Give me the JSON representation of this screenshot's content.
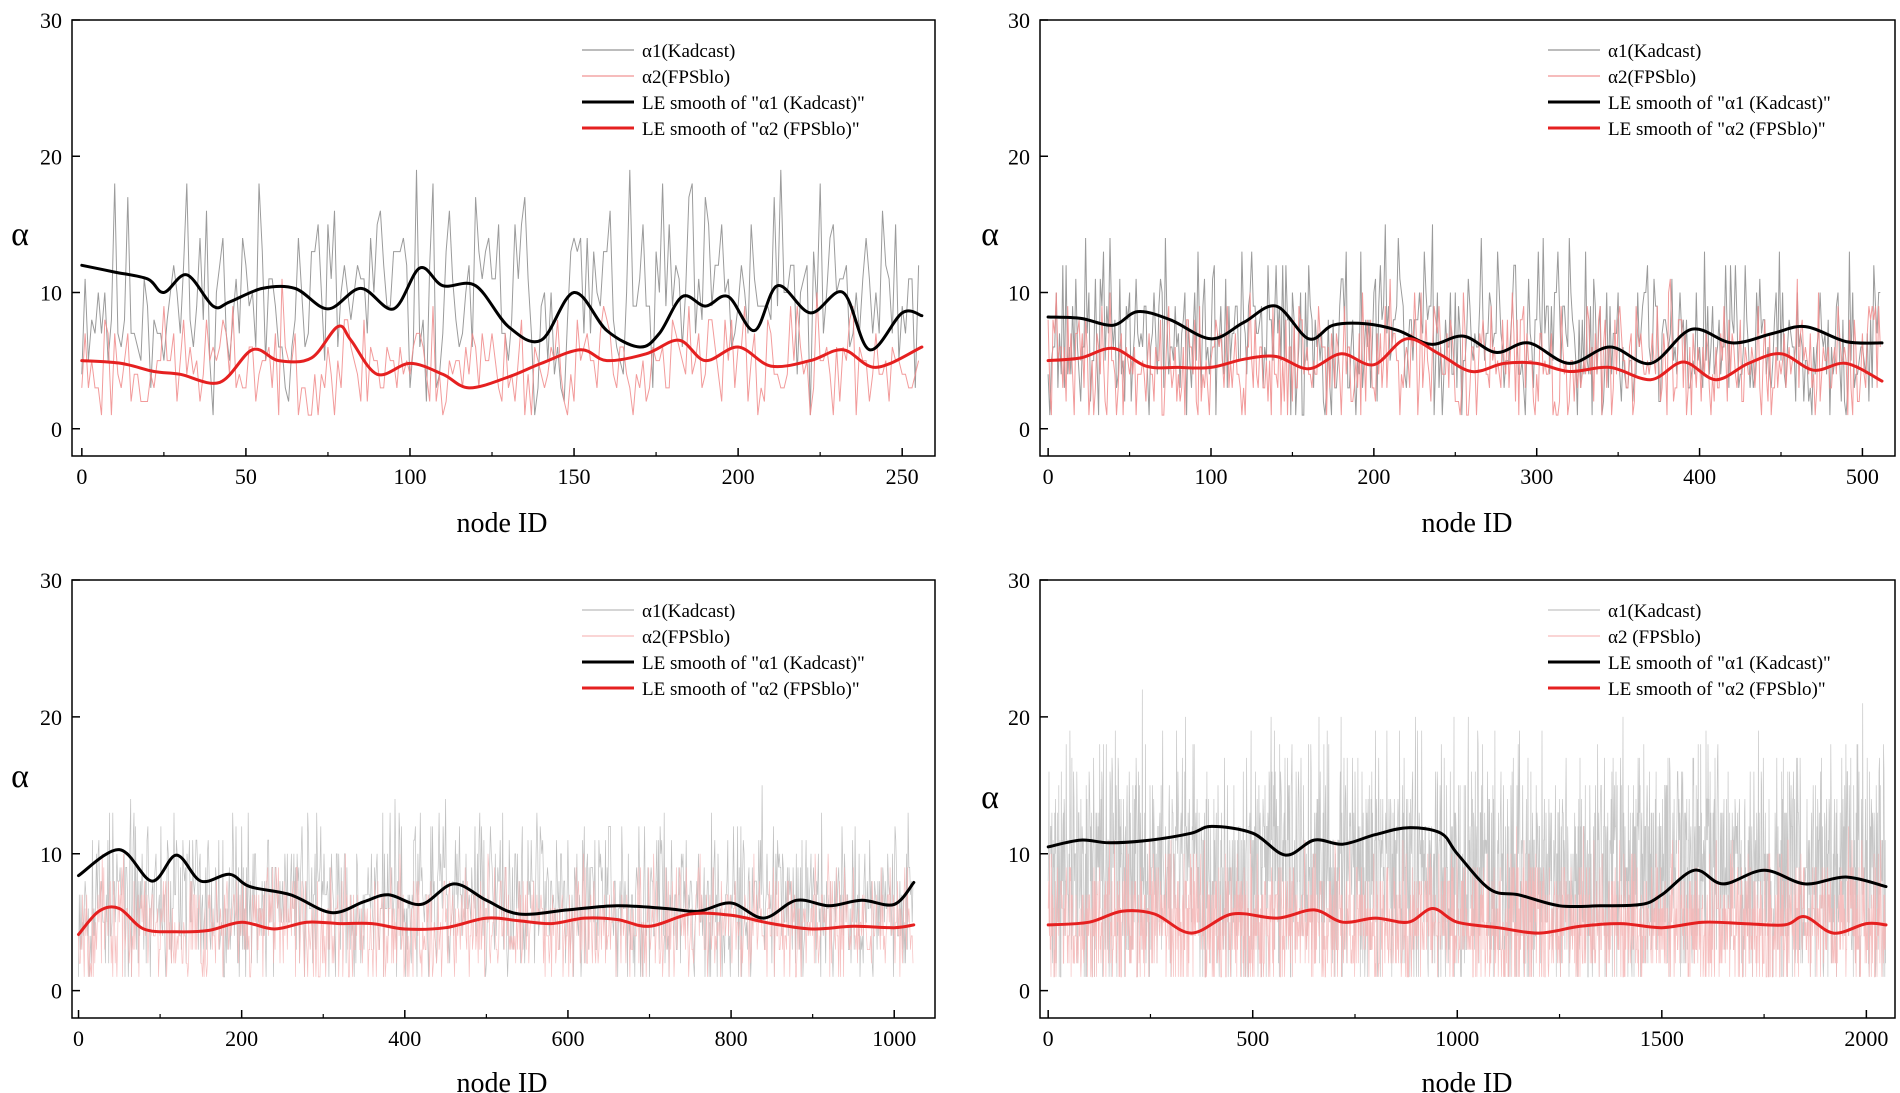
{
  "chart_data": [
    {
      "type": "line",
      "xlabel": "node ID",
      "ylabel": "α",
      "xlim": [
        -3,
        260
      ],
      "ylim": [
        -2,
        30
      ],
      "xticks": [
        0,
        50,
        100,
        150,
        200,
        250
      ],
      "yticks": [
        0,
        10,
        20,
        30
      ],
      "raw_series": [
        {
          "name": "α1(Kadcast)",
          "color": "#8a8a8a",
          "seed": 11,
          "n": 256,
          "mean": 9.5,
          "amp": 4.2,
          "min": 1,
          "max": 19
        },
        {
          "name": "α2(FPSblo)",
          "color": "#f08a8a",
          "seed": 23,
          "n": 256,
          "mean": 4.8,
          "amp": 2.2,
          "min": 1,
          "max": 13
        }
      ],
      "smooth_series": [
        {
          "name": "LE smooth of \"α1 (Kadcast)\"",
          "color": "#000000",
          "x": [
            0,
            10,
            20,
            25,
            32,
            40,
            45,
            55,
            65,
            75,
            85,
            95,
            103,
            110,
            120,
            130,
            140,
            150,
            160,
            170,
            176,
            183,
            190,
            197,
            205,
            212,
            222,
            232,
            240,
            250,
            256
          ],
          "y": [
            12,
            11.5,
            11,
            10,
            11.3,
            9,
            9.3,
            10.3,
            10.3,
            8.8,
            10.3,
            8.8,
            11.8,
            10.5,
            10.5,
            7.5,
            6.5,
            10,
            7.2,
            6,
            7,
            9.7,
            9,
            9.7,
            7.2,
            10.5,
            8.5,
            10,
            5.8,
            8.5,
            8.3
          ]
        },
        {
          "name": "LE smooth of \"α2 (FPSblo)\"",
          "color": "#e52020",
          "x": [
            0,
            12,
            22,
            30,
            42,
            52,
            60,
            70,
            78,
            82,
            90,
            100,
            110,
            118,
            130,
            140,
            152,
            160,
            172,
            182,
            190,
            200,
            210,
            222,
            232,
            242,
            256
          ],
          "y": [
            5,
            4.8,
            4.2,
            4,
            3.4,
            5.8,
            5,
            5.2,
            7.5,
            6.5,
            4,
            4.8,
            4,
            3,
            3.8,
            4.8,
            5.8,
            5,
            5.5,
            6.5,
            5,
            6,
            4.6,
            5,
            5.8,
            4.5,
            6
          ]
        }
      ]
    },
    {
      "type": "line",
      "xlabel": "node ID",
      "ylabel": "α",
      "xlim": [
        -5,
        520
      ],
      "ylim": [
        -2,
        30
      ],
      "xticks": [
        0,
        100,
        200,
        300,
        400,
        500
      ],
      "yticks": [
        0,
        10,
        20,
        30
      ],
      "raw_series": [
        {
          "name": "α1(Kadcast)",
          "color": "#8a8a8a",
          "seed": 37,
          "n": 512,
          "mean": 6.8,
          "amp": 3.2,
          "min": 1,
          "max": 17
        },
        {
          "name": "α2(FPSblo)",
          "color": "#f08a8a",
          "seed": 41,
          "n": 512,
          "mean": 4.8,
          "amp": 2.4,
          "min": 1,
          "max": 12
        }
      ],
      "smooth_series": [
        {
          "name": "LE smooth of \"α1 (Kadcast)\"",
          "color": "#000000",
          "x": [
            0,
            20,
            40,
            55,
            75,
            100,
            120,
            140,
            160,
            175,
            195,
            215,
            235,
            255,
            275,
            295,
            320,
            345,
            370,
            395,
            420,
            445,
            465,
            490,
            512
          ],
          "y": [
            8.2,
            8.1,
            7.6,
            8.6,
            8,
            6.6,
            7.8,
            9,
            6.6,
            7.6,
            7.7,
            7.2,
            6.2,
            6.8,
            5.6,
            6.3,
            4.8,
            6,
            4.8,
            7.3,
            6.3,
            7,
            7.5,
            6.4,
            6.3
          ]
        },
        {
          "name": "LE smooth of \"α2 (FPSblo)\"",
          "color": "#e52020",
          "x": [
            0,
            20,
            40,
            60,
            80,
            100,
            120,
            140,
            160,
            180,
            200,
            220,
            240,
            260,
            280,
            300,
            320,
            345,
            370,
            390,
            410,
            430,
            450,
            470,
            490,
            512
          ],
          "y": [
            5,
            5.2,
            5.9,
            4.6,
            4.5,
            4.5,
            5.1,
            5.3,
            4.4,
            5.5,
            4.7,
            6.6,
            5.5,
            4.2,
            4.8,
            4.8,
            4.2,
            4.5,
            3.6,
            4.9,
            3.6,
            4.8,
            5.5,
            4.3,
            4.8,
            3.5
          ]
        }
      ]
    },
    {
      "type": "line",
      "xlabel": "node ID",
      "ylabel": "α",
      "xlim": [
        -8,
        1050
      ],
      "ylim": [
        -2,
        30
      ],
      "xticks": [
        0,
        200,
        400,
        600,
        800,
        1000
      ],
      "yticks": [
        0,
        10,
        20,
        30
      ],
      "raw_series": [
        {
          "name": "α1(Kadcast)",
          "color": "#b5b5b5",
          "seed": 53,
          "n": 1024,
          "mean": 6.8,
          "amp": 3.0,
          "min": 1,
          "max": 19
        },
        {
          "name": "α2(FPSblo)",
          "color": "#f5b5b5",
          "seed": 67,
          "n": 1024,
          "mean": 4.8,
          "amp": 2.2,
          "min": 1,
          "max": 10
        }
      ],
      "smooth_series": [
        {
          "name": "LE smooth of \"α1 (Kadcast)\"",
          "color": "#000000",
          "x": [
            0,
            50,
            90,
            120,
            150,
            185,
            210,
            260,
            310,
            350,
            380,
            420,
            460,
            500,
            540,
            600,
            660,
            720,
            760,
            800,
            840,
            880,
            920,
            960,
            1000,
            1024
          ],
          "y": [
            8.4,
            10.3,
            8,
            9.9,
            8,
            8.5,
            7.6,
            7,
            5.7,
            6.5,
            7,
            6.3,
            7.8,
            6.6,
            5.6,
            5.9,
            6.2,
            6,
            5.8,
            6.4,
            5.3,
            6.6,
            6.2,
            6.6,
            6.3,
            7.9
          ]
        },
        {
          "name": "LE smooth of \"α2 (FPSblo)\"",
          "color": "#e52020",
          "x": [
            0,
            25,
            50,
            80,
            120,
            160,
            200,
            240,
            280,
            320,
            360,
            400,
            450,
            500,
            540,
            580,
            620,
            660,
            700,
            750,
            800,
            850,
            900,
            950,
            1000,
            1024
          ],
          "y": [
            4.1,
            5.8,
            6,
            4.5,
            4.3,
            4.4,
            5,
            4.5,
            5,
            4.9,
            4.9,
            4.5,
            4.6,
            5.3,
            5.1,
            4.9,
            5.3,
            5.2,
            4.7,
            5.6,
            5.5,
            4.9,
            4.5,
            4.7,
            4.6,
            4.8
          ]
        }
      ]
    },
    {
      "type": "line",
      "xlabel": "node ID",
      "ylabel": "α",
      "xlim": [
        -20,
        2070
      ],
      "ylim": [
        -2,
        30
      ],
      "xticks": [
        0,
        500,
        1000,
        1500,
        2000
      ],
      "yticks": [
        0,
        10,
        20,
        30
      ],
      "raw_series": [
        {
          "name": "α1(Kadcast)",
          "color": "#bcbcbc",
          "seed": 71,
          "n": 2048,
          "mean": 9.0,
          "amp": 4.5,
          "min": 1,
          "max": 24
        },
        {
          "name": "α2 (FPSblo)",
          "color": "#f5b5b5",
          "seed": 83,
          "n": 2048,
          "mean": 5.0,
          "amp": 2.6,
          "min": 1,
          "max": 13
        }
      ],
      "smooth_series": [
        {
          "name": "LE smooth of \"α1 (Kadcast)\"",
          "color": "#000000",
          "x": [
            0,
            80,
            150,
            250,
            350,
            400,
            500,
            580,
            650,
            720,
            800,
            880,
            960,
            1000,
            1080,
            1150,
            1250,
            1350,
            1450,
            1500,
            1580,
            1650,
            1750,
            1850,
            1950,
            2048
          ],
          "y": [
            10.5,
            11,
            10.8,
            11,
            11.5,
            12,
            11.5,
            9.9,
            11,
            10.7,
            11.4,
            11.9,
            11.5,
            10,
            7.4,
            7,
            6.2,
            6.2,
            6.3,
            7,
            8.8,
            7.8,
            8.8,
            7.8,
            8.3,
            7.6
          ]
        },
        {
          "name": "LE smooth of \"α2 (FPSblo)\"",
          "color": "#e52020",
          "x": [
            0,
            100,
            180,
            260,
            350,
            450,
            560,
            650,
            720,
            800,
            880,
            940,
            1000,
            1100,
            1200,
            1300,
            1400,
            1500,
            1600,
            1700,
            1800,
            1850,
            1920,
            2000,
            2048
          ],
          "y": [
            4.8,
            5,
            5.8,
            5.6,
            4.2,
            5.6,
            5.3,
            5.9,
            5,
            5.3,
            5,
            6,
            5,
            4.6,
            4.2,
            4.7,
            4.9,
            4.6,
            5,
            4.9,
            4.8,
            5.4,
            4.2,
            4.9,
            4.8
          ]
        }
      ]
    }
  ]
}
